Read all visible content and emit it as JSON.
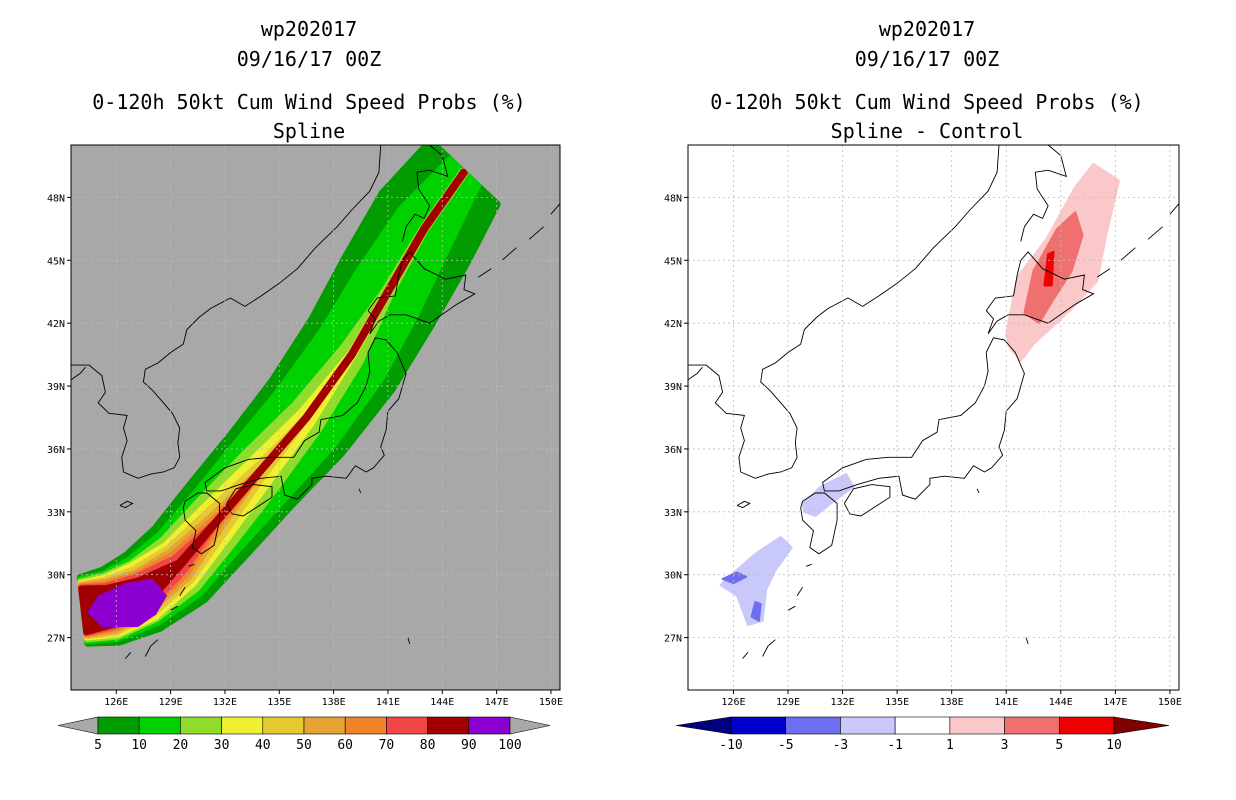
{
  "chart_data": [
    {
      "type": "filled-contour-map",
      "storm_id": "wp202017",
      "date": "09/16/17 00Z",
      "title": "0-120h 50kt Cum Wind Speed Probs (%)",
      "subtitle": "Spline",
      "x_ticks": [
        "126E",
        "129E",
        "132E",
        "135E",
        "138E",
        "141E",
        "144E",
        "147E",
        "150E"
      ],
      "y_ticks": [
        "27N",
        "30N",
        "33N",
        "36N",
        "39N",
        "42N",
        "45N",
        "48N"
      ],
      "xlim": [
        123.5,
        150.5
      ],
      "ylim": [
        24.5,
        50.5
      ],
      "background": "#a8a8a8",
      "colorbar": {
        "labels": [
          "5",
          "10",
          "20",
          "30",
          "40",
          "50",
          "60",
          "70",
          "80",
          "90",
          "100"
        ],
        "colors": [
          "#009c00",
          "#00d200",
          "#90dc2c",
          "#f0f032",
          "#e6c832",
          "#e6a232",
          "#f08228",
          "#f04646",
          "#a00000",
          "#8c00d2"
        ],
        "under_color": "#a8a8a8",
        "over_color": "#a8a8a8"
      },
      "track_centerline": [
        [
          124.2,
          28.3
        ],
        [
          125.7,
          28.5
        ],
        [
          127.5,
          29.2
        ],
        [
          129.5,
          30.5
        ],
        [
          131.5,
          32.5
        ],
        [
          134,
          35
        ],
        [
          136.5,
          37.5
        ],
        [
          139,
          40.5
        ],
        [
          141,
          43.5
        ],
        [
          143,
          46.5
        ],
        [
          145.2,
          49.2
        ]
      ],
      "bands": [
        {
          "level": "5",
          "color": "#009c00",
          "widths": [
            1.6,
            1.8,
            2.0,
            2.2,
            2.3,
            2.4,
            2.6,
            2.8,
            2.9,
            2.9,
            2.4
          ]
        },
        {
          "level": "10",
          "color": "#00d200",
          "widths": [
            1.5,
            1.6,
            1.7,
            1.8,
            1.8,
            1.9,
            2.0,
            2.0,
            1.9,
            1.6,
            1.0
          ]
        },
        {
          "level": "20",
          "color": "#90dc2c",
          "widths": [
            1.4,
            1.5,
            1.5,
            1.5,
            1.4,
            1.2,
            0.9,
            0.6,
            0.2,
            0.1,
            0.1
          ]
        },
        {
          "level": "30",
          "color": "#f0f032",
          "widths": [
            1.3,
            1.4,
            1.4,
            1.2,
            1.0,
            0.7,
            0.4,
            0.1,
            0.05,
            0.05,
            0.05
          ]
        },
        {
          "level": "40",
          "color": "#e6c832",
          "widths": [
            1.25,
            1.3,
            1.2,
            1.0,
            0.7,
            0.3,
            0.05,
            0.05,
            0.05,
            0.05,
            0.05
          ]
        },
        {
          "level": "50",
          "color": "#e6a232",
          "widths": [
            1.2,
            1.2,
            1.0,
            0.8,
            0.4,
            0.05,
            0.05,
            0.05,
            0.05,
            0.05,
            0.05
          ]
        },
        {
          "level": "60",
          "color": "#f08228",
          "widths": [
            1.15,
            1.1,
            0.9,
            0.6,
            0.2,
            0.05,
            0.05,
            0.05,
            0.05,
            0.05,
            0.05
          ]
        },
        {
          "level": "70",
          "color": "#f04646",
          "widths": [
            1.1,
            1.0,
            0.8,
            0.4,
            0.05,
            0.05,
            0.05,
            0.05,
            0.05,
            0.05,
            0.05
          ]
        },
        {
          "level": "80",
          "color": "#a00000",
          "widths": [
            1.05,
            0.9,
            0.6,
            0.1,
            0.05,
            0.05,
            0.05,
            0.05,
            0.05,
            0.05,
            0.05
          ]
        }
      ],
      "core_100": {
        "color": "#8c00d2",
        "polygon": [
          [
            124.4,
            28.2
          ],
          [
            125.0,
            29.0
          ],
          [
            126.5,
            29.6
          ],
          [
            128.0,
            29.8
          ],
          [
            128.8,
            29.0
          ],
          [
            128.2,
            28.1
          ],
          [
            127.2,
            27.5
          ],
          [
            125.2,
            27.5
          ]
        ]
      }
    },
    {
      "type": "filled-contour-map",
      "storm_id": "wp202017",
      "date": "09/16/17 00Z",
      "title": "0-120h 50kt Cum Wind Speed Probs (%)",
      "subtitle": "Spline - Control",
      "x_ticks": [
        "126E",
        "129E",
        "132E",
        "135E",
        "138E",
        "141E",
        "144E",
        "147E",
        "150E"
      ],
      "y_ticks": [
        "27N",
        "30N",
        "33N",
        "36N",
        "39N",
        "42N",
        "45N",
        "48N"
      ],
      "xlim": [
        123.5,
        150.5
      ],
      "ylim": [
        24.5,
        50.5
      ],
      "background": "#ffffff",
      "colorbar": {
        "labels": [
          "-10",
          "-5",
          "-3",
          "-1",
          "1",
          "3",
          "5",
          "10"
        ],
        "colors": [
          "#0000cc",
          "#6e6ef0",
          "#c8c8fa",
          "#ffffff",
          "#fac8c8",
          "#f07070",
          "#f00000"
        ],
        "under_color": "#000080",
        "over_color": "#800000"
      },
      "regions": [
        {
          "name": "Hokkaido positive light",
          "color": "#fac8c8",
          "polygon": [
            [
              141,
              41.5
            ],
            [
              141.6,
              44.2
            ],
            [
              143.2,
              46.0
            ],
            [
              144.8,
              48.5
            ],
            [
              145.8,
              49.6
            ],
            [
              147.2,
              48.8
            ],
            [
              146.5,
              46.2
            ],
            [
              146.0,
              44.0
            ],
            [
              144.5,
              42.6
            ],
            [
              142.5,
              41.0
            ],
            [
              141.8,
              40.2
            ],
            [
              141.2,
              40.8
            ]
          ]
        },
        {
          "name": "Hokkaido positive mid",
          "color": "#f07070",
          "polygon": [
            [
              142,
              42.5
            ],
            [
              142.5,
              44.5
            ],
            [
              143.8,
              46.5
            ],
            [
              144.8,
              47.3
            ],
            [
              145.2,
              46.2
            ],
            [
              144.6,
              44.5
            ],
            [
              143.5,
              43.0
            ],
            [
              142.8,
              42.0
            ]
          ]
        },
        {
          "name": "Hokkaido positive core",
          "color": "#f00000",
          "polygon": [
            [
              143.1,
              43.8
            ],
            [
              143.3,
              45.3
            ],
            [
              143.6,
              45.4
            ],
            [
              143.5,
              43.8
            ]
          ]
        },
        {
          "name": "Kyushu negative light",
          "color": "#c8c8fa",
          "polygon": [
            [
              129.8,
              33.4
            ],
            [
              130.8,
              34.2
            ],
            [
              132.2,
              34.8
            ],
            [
              132.6,
              34.2
            ],
            [
              131.5,
              33.5
            ],
            [
              130.5,
              32.8
            ],
            [
              129.9,
              33.0
            ]
          ]
        },
        {
          "name": "South negative light",
          "color": "#c8c8fa",
          "polygon": [
            [
              125.5,
              29.7
            ],
            [
              127.2,
              31.0
            ],
            [
              128.6,
              31.8
            ],
            [
              129.2,
              31.3
            ],
            [
              128.3,
              30.2
            ],
            [
              127.8,
              29.3
            ],
            [
              127.6,
              27.8
            ],
            [
              126.8,
              27.6
            ],
            [
              126.2,
              29.0
            ],
            [
              125.3,
              29.5
            ]
          ]
        },
        {
          "name": "South negative core east",
          "color": "#6e6ef0",
          "polygon": [
            [
              127.0,
              28.0
            ],
            [
              127.2,
              28.7
            ],
            [
              127.5,
              28.6
            ],
            [
              127.4,
              27.8
            ]
          ]
        },
        {
          "name": "South negative core west",
          "color": "#6e6ef0",
          "polygon": [
            [
              125.4,
              29.8
            ],
            [
              126.2,
              30.1
            ],
            [
              126.7,
              29.9
            ],
            [
              126.0,
              29.6
            ]
          ]
        }
      ]
    }
  ]
}
